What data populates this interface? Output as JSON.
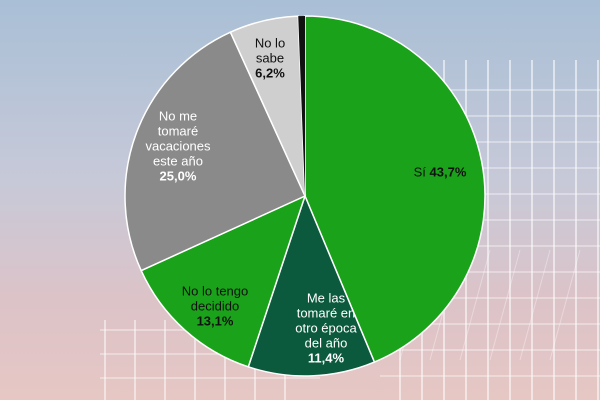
{
  "chart_data": {
    "type": "pie",
    "title": "",
    "slices": [
      {
        "label": "Sí",
        "value": 43.7,
        "value_label": "43,7%",
        "color": "#1aa31a",
        "text_color": "#111111"
      },
      {
        "label": "Me las\ntomaré en\notro época\ndel año",
        "value": 11.4,
        "value_label": "11,4%",
        "color": "#0b5a3d",
        "text_color": "#ffffff"
      },
      {
        "label": "No lo tengo\ndecidido",
        "value": 13.1,
        "value_label": "13,1%",
        "color": "#1aa31a",
        "text_color": "#111111"
      },
      {
        "label": "No me\ntomaré\nvacaciones\neste año",
        "value": 25.0,
        "value_label": "25,0%",
        "color": "#8a8a8a",
        "text_color": "#ffffff"
      },
      {
        "label": "No lo\nsabe",
        "value": 6.2,
        "value_label": "6,2%",
        "color": "#cfcfcf",
        "text_color": "#111111"
      },
      {
        "label": "",
        "value": 0.6,
        "value_label": "",
        "color": "#111111",
        "text_color": "#111111"
      }
    ]
  }
}
